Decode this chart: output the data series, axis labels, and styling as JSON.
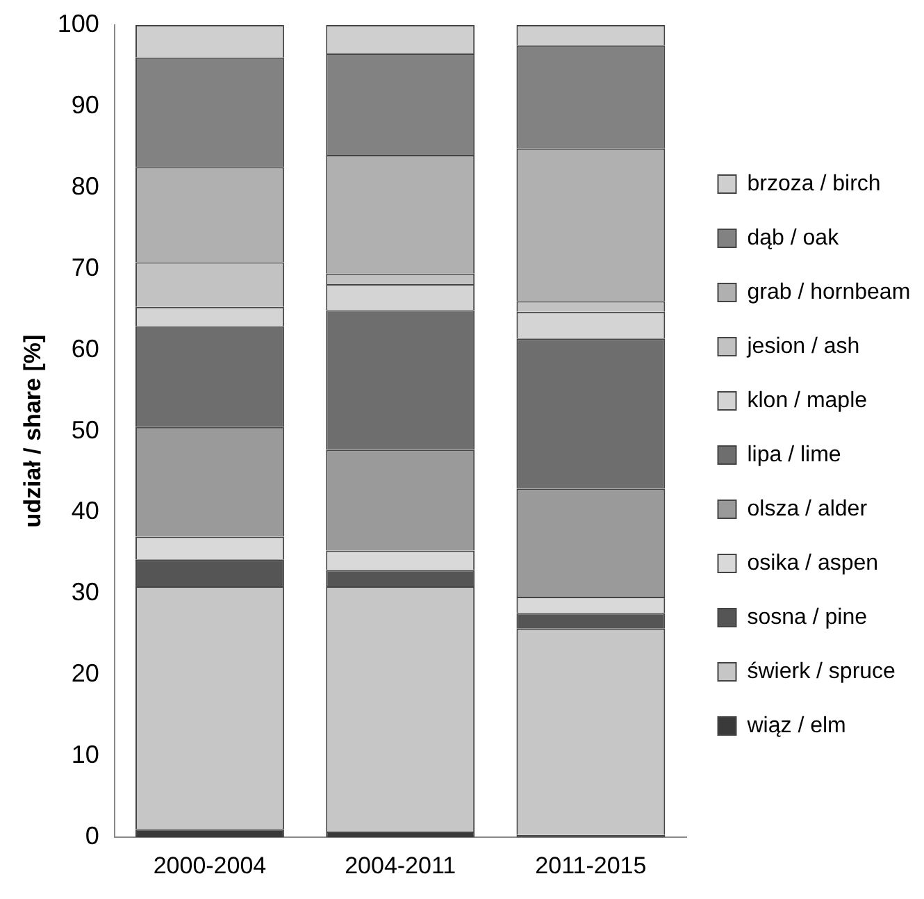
{
  "chart_data": {
    "type": "bar",
    "stacked": true,
    "ylabel": "udział / share [%]",
    "categories": [
      "2000-2004",
      "2004-2011",
      "2011-2015"
    ],
    "series": [
      {
        "name": "wiąz / elm",
        "color": "#3a3a3a",
        "values": [
          1.0,
          0.7,
          0.3
        ]
      },
      {
        "name": "świerk / spruce",
        "color": "#c6c6c6",
        "values": [
          29.9,
          30.2,
          25.4
        ]
      },
      {
        "name": "sosna / pine",
        "color": "#555555",
        "values": [
          3.3,
          2.0,
          1.9
        ]
      },
      {
        "name": "osika / aspen",
        "color": "#d9d9d9",
        "values": [
          2.8,
          2.4,
          2.0
        ]
      },
      {
        "name": "olsza / alder",
        "color": "#9a9a9a",
        "values": [
          13.5,
          12.4,
          13.3
        ]
      },
      {
        "name": "lipa / lime",
        "color": "#6e6e6e",
        "values": [
          12.4,
          17.2,
          18.5
        ]
      },
      {
        "name": "klon / maple",
        "color": "#d4d4d4",
        "values": [
          2.4,
          3.2,
          3.3
        ]
      },
      {
        "name": "jesion / ash",
        "color": "#c2c2c2",
        "values": [
          5.5,
          1.3,
          1.3
        ]
      },
      {
        "name": "grab / hornbeam",
        "color": "#b0b0b0",
        "values": [
          11.7,
          14.6,
          18.8
        ]
      },
      {
        "name": "dąb / oak",
        "color": "#828282",
        "values": [
          13.5,
          12.5,
          12.7
        ]
      },
      {
        "name": "brzoza / birch",
        "color": "#cfcfcf",
        "values": [
          4.0,
          3.5,
          2.5
        ]
      }
    ],
    "ylim": [
      0,
      100
    ],
    "yticks": [
      0,
      10,
      20,
      30,
      40,
      50,
      60,
      70,
      80,
      90,
      100
    ],
    "grid": false,
    "legend": "right"
  }
}
